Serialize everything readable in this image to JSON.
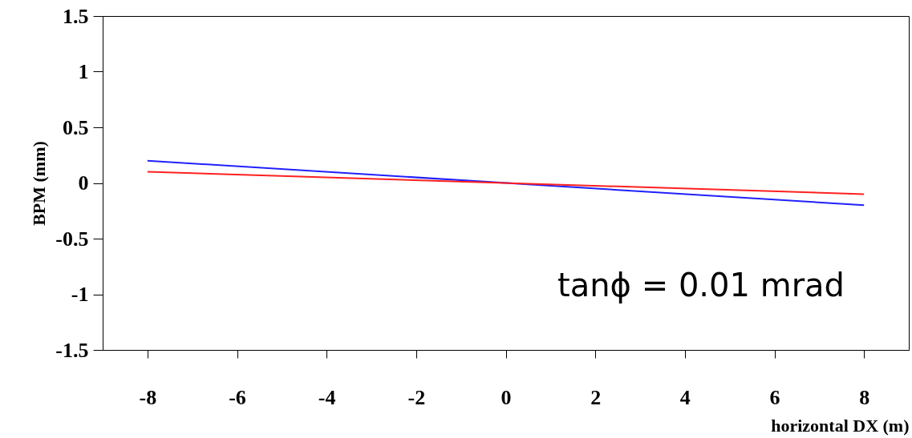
{
  "chart_data": {
    "type": "line",
    "xlabel": "horizontal DX (m)",
    "ylabel": "BPM (mm)",
    "xlim": [
      -9,
      9
    ],
    "xticks": [
      -8,
      -6,
      -4,
      -2,
      0,
      2,
      4,
      6,
      8
    ],
    "ylim": [
      -1.5,
      1.5
    ],
    "yticks": [
      -1.5,
      -1,
      -0.5,
      0,
      0.5,
      1,
      1.5
    ],
    "grid": false,
    "marker": "none",
    "line_style": "solid",
    "x": [
      -8,
      8
    ],
    "annotations": [
      "tanϕ = 0.01 mrad"
    ],
    "series": [
      {
        "color": "#2020ff",
        "values": [
          0.2,
          -0.2
        ]
      },
      {
        "color": "#ff2020",
        "values": [
          0.1,
          -0.1
        ]
      }
    ]
  }
}
